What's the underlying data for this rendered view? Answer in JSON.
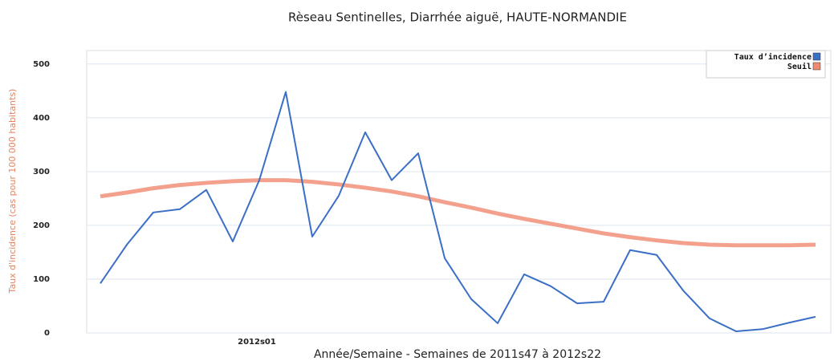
{
  "chart_data": {
    "type": "line",
    "title": "Rèseau Sentinelles, Diarrhée aiguë, HAUTE-NORMANDIE",
    "x_label": "Année/Semaine - Semaines de 2011s47 à 2012s22",
    "y_label": "Taux d'incidence (cas pour 100 000 habitants)",
    "categories": [
      null,
      null,
      null,
      null,
      null,
      null,
      "2012s01",
      null,
      null,
      null,
      null,
      null,
      null,
      null,
      null,
      null,
      null,
      null,
      null,
      null,
      null,
      null,
      null,
      null,
      null,
      null,
      null,
      null
    ],
    "series": [
      {
        "name": "Taux d’incidence",
        "color": "#3b6fc6",
        "values": [
          92,
          164,
          224,
          230,
          266,
          170,
          284,
          448,
          179,
          255,
          373,
          284,
          334,
          139,
          63,
          18,
          109,
          87,
          55,
          58,
          154,
          145,
          79,
          27,
          3,
          7,
          19,
          30
        ]
      },
      {
        "name": "Seuil",
        "color": "#f08a70",
        "values": [
          254,
          261,
          269,
          275,
          279,
          282,
          284,
          284,
          281,
          276,
          270,
          263,
          254,
          243,
          233,
          222,
          212,
          203,
          194,
          185,
          178,
          172,
          167,
          164,
          163,
          163,
          163,
          164
        ]
      }
    ],
    "ylim": [
      0,
      525
    ],
    "yticks": [
      0,
      100,
      200,
      300,
      400,
      500
    ],
    "grid": true,
    "legend": "top-right"
  }
}
